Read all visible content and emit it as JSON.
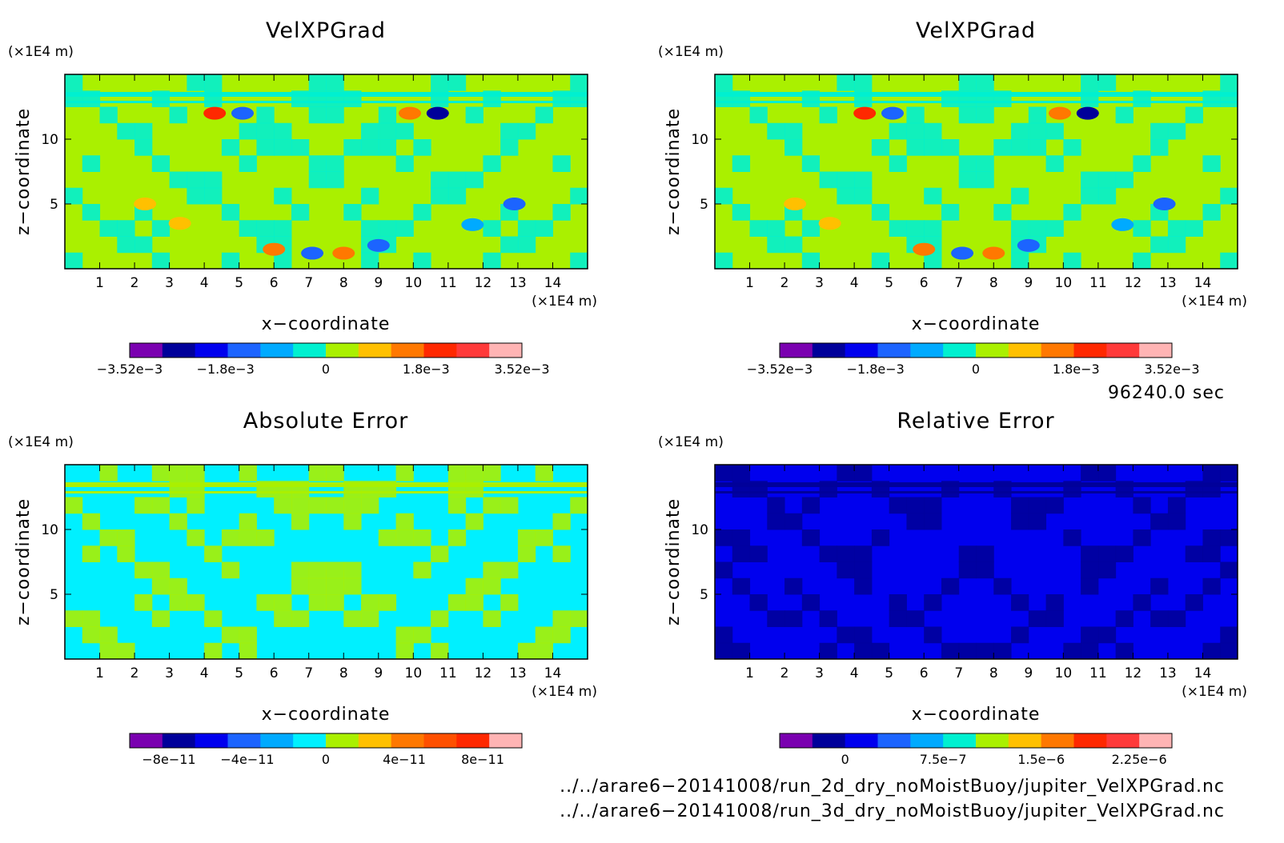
{
  "chart_data": [
    {
      "type": "heatmap",
      "title": "VelXPGrad",
      "xlabel": "x−coordinate",
      "ylabel": "z−coordinate",
      "x_unit": "(×1E4 m)",
      "z_unit": "(×1E4 m)",
      "xlim": [
        0,
        15
      ],
      "zlim": [
        0,
        15
      ],
      "x_ticks": [
        "1",
        "2",
        "3",
        "4",
        "5",
        "6",
        "7",
        "8",
        "9",
        "10",
        "11",
        "12",
        "13",
        "14"
      ],
      "z_ticks": [
        "5",
        "10"
      ],
      "colorbar": {
        "colors": [
          "#7a00b0",
          "#00009a",
          "#0000ee",
          "#1c64ff",
          "#00aaff",
          "#00f0d0",
          "#aaf000",
          "#ffc000",
          "#ff7800",
          "#ff2800",
          "#ff3a3a",
          "#ffb4b4"
        ],
        "labels": [
          "−3.52e−3",
          "−1.8e−3",
          "0",
          "1.8e−3",
          "3.52e−3"
        ],
        "range": [
          -0.00352,
          0.00352
        ]
      },
      "base_color": "#aaf000",
      "alt_color": "#00f0d0"
    },
    {
      "type": "heatmap",
      "title": "VelXPGrad",
      "xlabel": "x−coordinate",
      "ylabel": "z−coordinate",
      "x_unit": "(×1E4 m)",
      "z_unit": "(×1E4 m)",
      "xlim": [
        0,
        15
      ],
      "zlim": [
        0,
        15
      ],
      "x_ticks": [
        "1",
        "2",
        "3",
        "4",
        "5",
        "6",
        "7",
        "8",
        "9",
        "10",
        "11",
        "12",
        "13",
        "14"
      ],
      "z_ticks": [
        "5",
        "10"
      ],
      "colorbar": {
        "colors": [
          "#7a00b0",
          "#00009a",
          "#0000ee",
          "#1c64ff",
          "#00aaff",
          "#00f0d0",
          "#aaf000",
          "#ffc000",
          "#ff7800",
          "#ff2800",
          "#ff3a3a",
          "#ffb4b4"
        ],
        "labels": [
          "−3.52e−3",
          "−1.8e−3",
          "0",
          "1.8e−3",
          "3.52e−3"
        ],
        "range": [
          -0.00352,
          0.00352
        ]
      },
      "base_color": "#aaf000",
      "alt_color": "#00f0d0"
    },
    {
      "type": "heatmap",
      "title": "Absolute Error",
      "xlabel": "x−coordinate",
      "ylabel": "z−coordinate",
      "x_unit": "(×1E4 m)",
      "z_unit": "(×1E4 m)",
      "xlim": [
        0,
        15
      ],
      "zlim": [
        0,
        15
      ],
      "x_ticks": [
        "1",
        "2",
        "3",
        "4",
        "5",
        "6",
        "7",
        "8",
        "9",
        "10",
        "11",
        "12",
        "13",
        "14"
      ],
      "z_ticks": [
        "5",
        "10"
      ],
      "colorbar": {
        "colors": [
          "#7a00b0",
          "#00009a",
          "#0000ee",
          "#1c64ff",
          "#00aaff",
          "#00f0ff",
          "#aaf000",
          "#ffc000",
          "#ff7800",
          "#ff5000",
          "#ff2800",
          "#ffb4b4"
        ],
        "labels": [
          "−8e−11",
          "−4e−11",
          "0",
          "4e−11",
          "8e−11"
        ],
        "range": [
          -1e-10,
          1e-10
        ]
      },
      "base_color": "#00f0ff",
      "alt_color": "#aaf000"
    },
    {
      "type": "heatmap",
      "title": "Relative Error",
      "xlabel": "x−coordinate",
      "ylabel": "z−coordinate",
      "x_unit": "(×1E4 m)",
      "z_unit": "(×1E4 m)",
      "xlim": [
        0,
        15
      ],
      "zlim": [
        0,
        15
      ],
      "x_ticks": [
        "1",
        "2",
        "3",
        "4",
        "5",
        "6",
        "7",
        "8",
        "9",
        "10",
        "11",
        "12",
        "13",
        "14"
      ],
      "z_ticks": [
        "5",
        "10"
      ],
      "colorbar": {
        "colors": [
          "#7a00b0",
          "#00009a",
          "#0000ee",
          "#1c64ff",
          "#00aaff",
          "#00f0d0",
          "#aaf000",
          "#ffc000",
          "#ff7800",
          "#ff2800",
          "#ff3a3a",
          "#ffb4b4"
        ],
        "labels": [
          "0",
          "7.5e−7",
          "1.5e−6",
          "2.25e−6"
        ],
        "range": [
          -5e-07,
          2.5e-06
        ]
      },
      "base_color": "#0000ee",
      "alt_color": "#00009a"
    }
  ],
  "meta": {
    "time": "96240.0 sec",
    "file1": "../../arare6−20141008/run_2d_dry_noMoistBuoy/jupiter_VelXPGrad.nc",
    "file2": "../../arare6−20141008/run_3d_dry_noMoistBuoy/jupiter_VelXPGrad.nc"
  }
}
